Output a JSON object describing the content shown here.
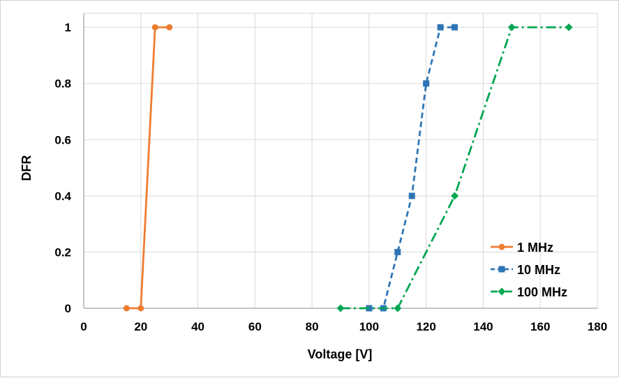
{
  "chart_data": {
    "type": "line",
    "title": "",
    "xlabel": "Voltage  [V]",
    "ylabel": "DFR",
    "xlim": [
      0,
      180
    ],
    "ylim": [
      0,
      1.05
    ],
    "x_ticks": [
      0,
      20,
      40,
      60,
      80,
      100,
      120,
      140,
      160,
      180
    ],
    "x_tick_labels": [
      "0",
      "20",
      "40",
      "60",
      "80",
      "100",
      "120",
      "140",
      "160",
      "180"
    ],
    "y_ticks": [
      0,
      0.2,
      0.4,
      0.6,
      0.8,
      1
    ],
    "y_tick_labels": [
      "0",
      "0.2",
      "0.4",
      "0.6",
      "0.8",
      "1"
    ],
    "grid": true,
    "legend_position": "bottom-right",
    "series": [
      {
        "name": "1 MHz",
        "color": "#ED7D31",
        "marker": "circle",
        "line_style": "solid",
        "x": [
          15,
          20,
          25,
          30
        ],
        "y": [
          0,
          0,
          1,
          1
        ]
      },
      {
        "name": "10 MHz",
        "color": "#2E75B6",
        "marker": "square",
        "line_style": "dash",
        "x": [
          100,
          105,
          110,
          115,
          120,
          125,
          130
        ],
        "y": [
          0,
          0,
          0.2,
          0.4,
          0.8,
          1,
          1
        ]
      },
      {
        "name": "100 MHz",
        "color": "#00A651",
        "marker": "diamond",
        "line_style": "dash-dot",
        "x": [
          90,
          110,
          130,
          150,
          170
        ],
        "y": [
          0,
          0,
          0.4,
          1,
          1
        ]
      }
    ]
  }
}
